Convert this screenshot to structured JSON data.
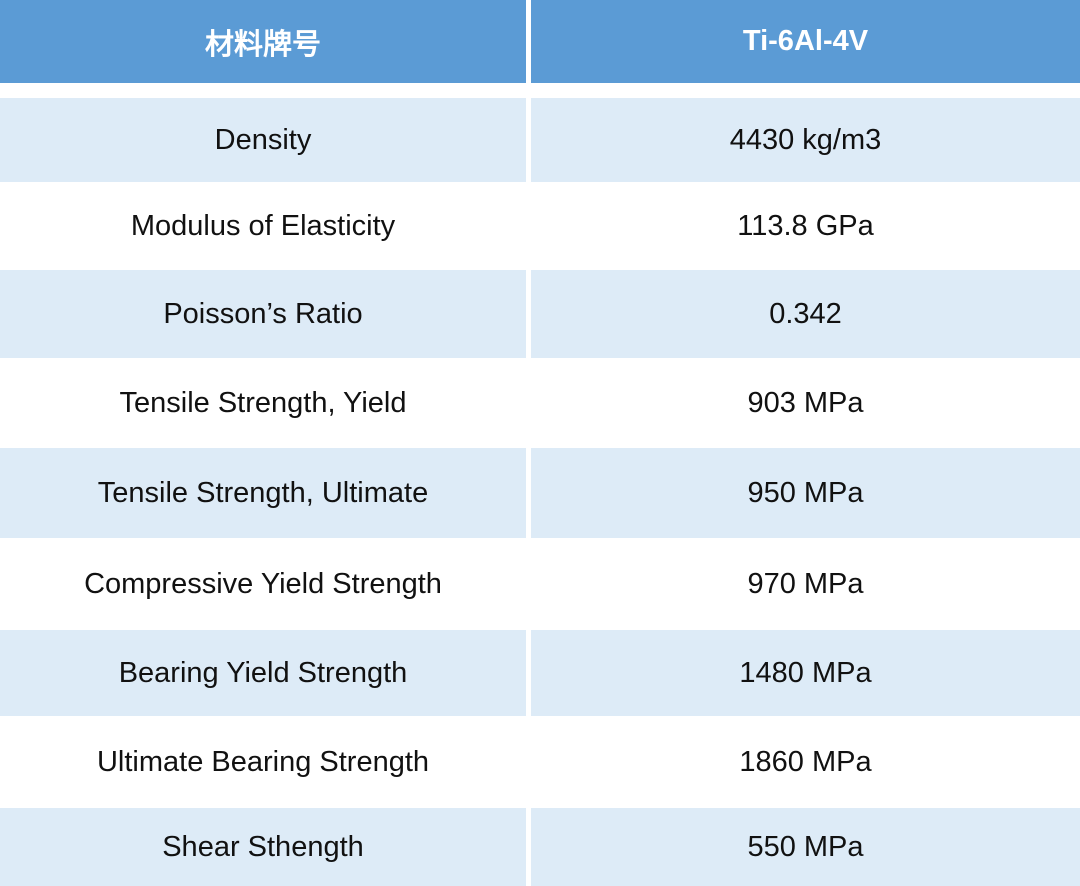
{
  "table": {
    "header": {
      "property": "材料牌号",
      "value": "Ti-6Al-4V"
    },
    "rows": [
      {
        "property": "Density",
        "value": "4430 kg/m3"
      },
      {
        "property": "Modulus of Elasticity",
        "value": "113.8 GPa"
      },
      {
        "property": "Poisson’s Ratio",
        "value": "0.342"
      },
      {
        "property": "Tensile Strength, Yield",
        "value": "903 MPa"
      },
      {
        "property": "Tensile Strength, Ultimate",
        "value": "950 MPa"
      },
      {
        "property": "Compressive Yield Strength",
        "value": "970 MPa"
      },
      {
        "property": "Bearing Yield Strength",
        "value": "1480 MPa"
      },
      {
        "property": "Ultimate Bearing Strength",
        "value": "1860 MPa"
      },
      {
        "property": "Shear Sthength",
        "value": "550 MPa"
      }
    ]
  },
  "colors": {
    "header_bg": "#5b9bd5",
    "band_light": "#ddebf7",
    "band_white": "#ffffff"
  }
}
